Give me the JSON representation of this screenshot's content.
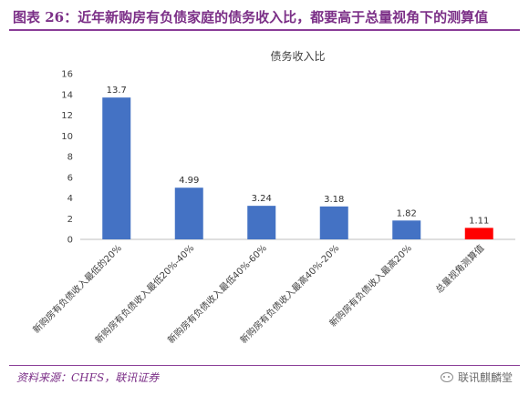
{
  "figure": {
    "title": "图表 26：近年新购房有负债家庭的债务收入比，都要高于总量视角下的测算值",
    "source": "资料来源：CHFS，联讯证券",
    "watermark": "联讯麒麟堂"
  },
  "colors": {
    "bar": "#4472c4",
    "highlight_bar": "#ff0000",
    "accent": "#7b2f87"
  },
  "chart_data": {
    "type": "bar",
    "title": "债务收入比",
    "xlabel": "",
    "ylabel": "",
    "categories": [
      "新购房有负债收入最低的20%",
      "新购房有负债收入最低20%-40%",
      "新购房有负债收入最低40%-60%",
      "新购房有负债收入最高40%-20%",
      "新购房有负债收入最高20%",
      "总量视角测算值"
    ],
    "values": [
      13.7,
      4.99,
      3.24,
      3.18,
      1.82,
      1.11
    ],
    "value_labels": [
      "13.7",
      "4.99",
      "3.24",
      "3.18",
      "1.82",
      "1.11"
    ],
    "highlight_index": 5,
    "ylim": [
      0,
      16
    ],
    "yticks": [
      0,
      2,
      4,
      6,
      8,
      10,
      12,
      14,
      16
    ],
    "grid": false,
    "legend": "none"
  }
}
